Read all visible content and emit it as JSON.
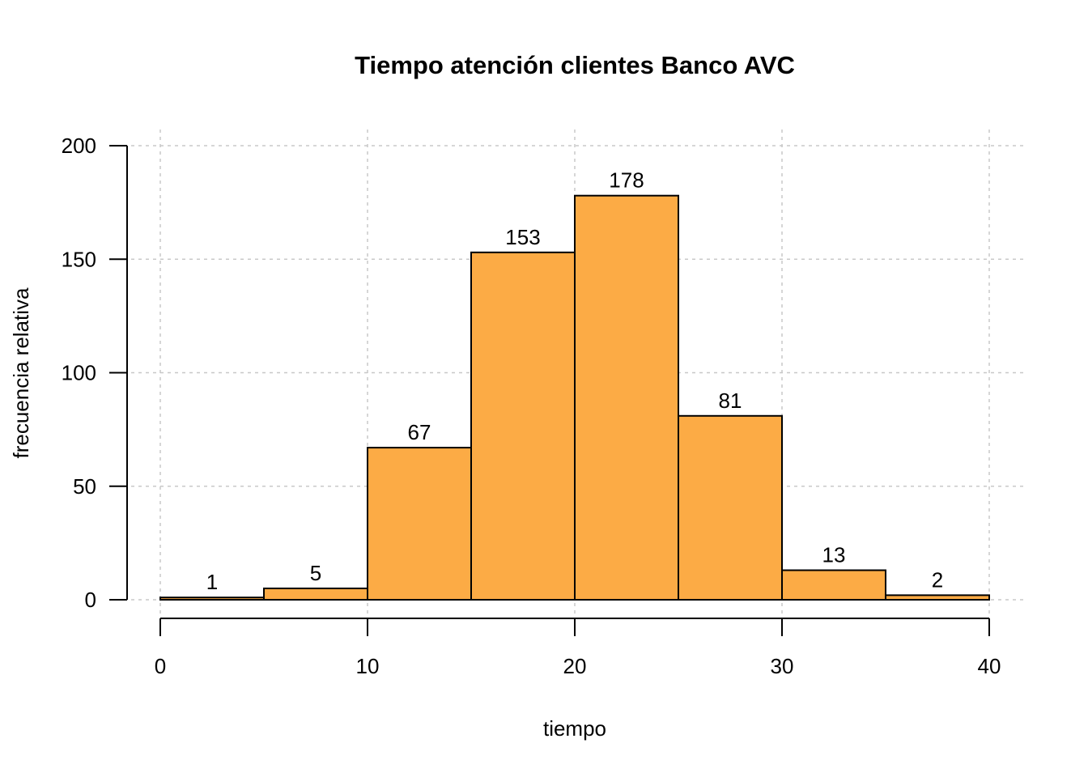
{
  "chart_data": {
    "type": "bar",
    "title": "Tiempo atención clientes Banco AVC",
    "xlabel": "tiempo",
    "ylabel": "frecuencia relativa",
    "bins": [
      [
        0,
        5
      ],
      [
        5,
        10
      ],
      [
        10,
        15
      ],
      [
        15,
        20
      ],
      [
        20,
        25
      ],
      [
        25,
        30
      ],
      [
        30,
        35
      ],
      [
        35,
        40
      ]
    ],
    "values": [
      1,
      5,
      67,
      153,
      178,
      81,
      13,
      2
    ],
    "data_labels": [
      "1",
      "5",
      "67",
      "153",
      "178",
      "81",
      "13",
      "2"
    ],
    "xlim": [
      0,
      40
    ],
    "ylim": [
      0,
      200
    ],
    "x_ticks": [
      0,
      10,
      20,
      30,
      40
    ],
    "x_tick_labels": [
      "0",
      "10",
      "20",
      "30",
      "40"
    ],
    "y_ticks": [
      0,
      50,
      100,
      150,
      200
    ],
    "y_tick_labels": [
      "0",
      "50",
      "100",
      "150",
      "200"
    ],
    "grid": true,
    "bar_color": "#FCAB45",
    "edge_color": "#000000",
    "grid_color": "#C8C8C8"
  }
}
